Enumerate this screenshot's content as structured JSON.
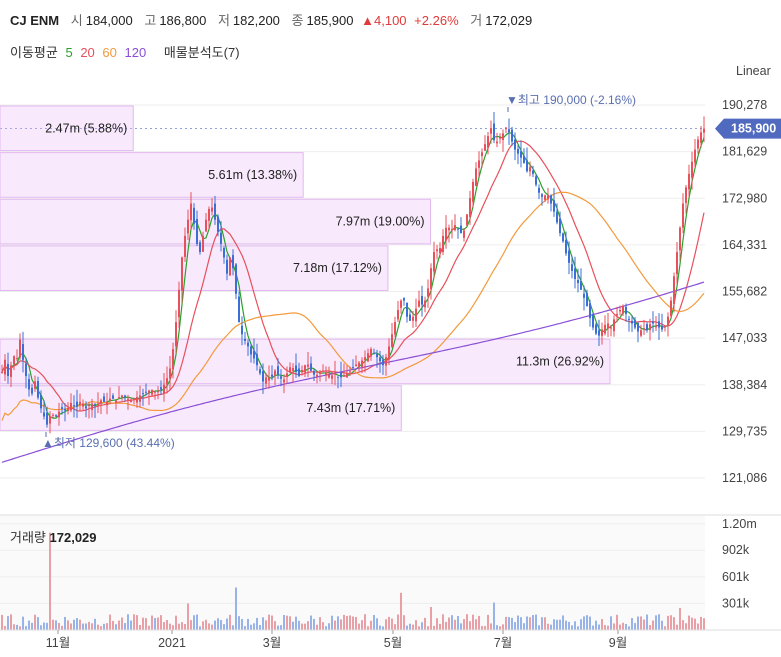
{
  "header": {
    "name": "CJ ENM",
    "open_label": "시",
    "open": "184,000",
    "high_label": "고",
    "high": "186,800",
    "low_label": "저",
    "low": "182,200",
    "close_label": "종",
    "close": "185,900",
    "change_arrow": "▲",
    "change": "4,100",
    "change_pct": "+2.26%",
    "volume_label": "거",
    "volume": "172,029"
  },
  "ma_legend": {
    "title": "이동평균",
    "items": [
      {
        "label": "5",
        "color": "#2ca02c"
      },
      {
        "label": "20",
        "color": "#e8505b"
      },
      {
        "label": "60",
        "color": "#f39a3c"
      },
      {
        "label": "120",
        "color": "#8a4fd6"
      }
    ],
    "profile_label": "매물분석도(7)"
  },
  "scale_label": "Linear",
  "current_price_tag": "185,900",
  "volume_title": "거래량",
  "volume_value": "172,029",
  "chart_data": {
    "type": "candlestick",
    "y_ticks": [
      "190,278",
      "181,629",
      "172,980",
      "164,331",
      "155,682",
      "147,033",
      "138,384",
      "129,735",
      "121,086"
    ],
    "y_tick_values": [
      190278,
      181629,
      172980,
      164331,
      155682,
      147033,
      138384,
      129735,
      121086
    ],
    "x_ticks": [
      "11월",
      "2021",
      "3월",
      "5월",
      "7월",
      "9월"
    ],
    "volume_ticks": [
      "1.20m",
      "902k",
      "601k",
      "301k"
    ],
    "volume_tick_values": [
      1200000,
      902000,
      601000,
      301000
    ],
    "high_annotation": "▼최고 190,000 (-2.16%)",
    "high_value": 190000,
    "low_annotation": "▲최저 129,600 (43.44%)",
    "low_value": 129600,
    "close_value": 185900,
    "price_profile": [
      {
        "label": "2.47m (5.88%)",
        "low": 181629,
        "high": 190278,
        "fraction": 0.0588
      },
      {
        "label": "5.61m (13.38%)",
        "low": 172980,
        "high": 181629,
        "fraction": 0.1338
      },
      {
        "label": "7.97m (19.00%)",
        "low": 164331,
        "high": 172980,
        "fraction": 0.19
      },
      {
        "label": "7.18m (17.12%)",
        "low": 155682,
        "high": 164331,
        "fraction": 0.1712
      },
      {
        "label": "11.3m (26.92%)",
        "low": 138384,
        "high": 147033,
        "fraction": 0.2692
      },
      {
        "label": "7.43m (17.71%)",
        "low": 129735,
        "high": 138384,
        "fraction": 0.1771
      }
    ],
    "close_path_points": [
      [
        0,
        140000
      ],
      [
        4,
        143000
      ],
      [
        8,
        139000
      ],
      [
        12,
        145000
      ],
      [
        15,
        141000
      ],
      [
        18,
        148000
      ],
      [
        22,
        143000
      ],
      [
        26,
        139000
      ],
      [
        30,
        136000
      ],
      [
        34,
        139000
      ],
      [
        38,
        135000
      ],
      [
        42,
        133000
      ],
      [
        46,
        131000
      ],
      [
        50,
        133000
      ],
      [
        55,
        132500
      ],
      [
        60,
        134000
      ],
      [
        65,
        133500
      ],
      [
        70,
        135000
      ],
      [
        75,
        134000
      ],
      [
        80,
        135500
      ],
      [
        85,
        134000
      ],
      [
        90,
        135000
      ],
      [
        95,
        134500
      ],
      [
        100,
        135500
      ],
      [
        105,
        135000
      ],
      [
        110,
        136000
      ],
      [
        115,
        135500
      ],
      [
        120,
        136500
      ],
      [
        125,
        136000
      ],
      [
        130,
        135500
      ],
      [
        135,
        136000
      ],
      [
        140,
        136500
      ],
      [
        145,
        137000
      ],
      [
        150,
        137500
      ],
      [
        155,
        137000
      ],
      [
        160,
        137500
      ],
      [
        165,
        139000
      ],
      [
        170,
        142000
      ],
      [
        174,
        148000
      ],
      [
        178,
        156000
      ],
      [
        182,
        164000
      ],
      [
        186,
        168000
      ],
      [
        190,
        172000
      ],
      [
        194,
        167000
      ],
      [
        198,
        162000
      ],
      [
        202,
        166000
      ],
      [
        206,
        170000
      ],
      [
        210,
        172000
      ],
      [
        214,
        169000
      ],
      [
        218,
        166000
      ],
      [
        222,
        163000
      ],
      [
        226,
        159000
      ],
      [
        230,
        163000
      ],
      [
        234,
        157000
      ],
      [
        238,
        150000
      ],
      [
        242,
        147000
      ],
      [
        246,
        146000
      ],
      [
        250,
        144000
      ],
      [
        254,
        143000
      ],
      [
        258,
        141000
      ],
      [
        262,
        139000
      ],
      [
        266,
        140000
      ],
      [
        270,
        139500
      ],
      [
        274,
        141000
      ],
      [
        278,
        140000
      ],
      [
        282,
        139000
      ],
      [
        286,
        140500
      ],
      [
        290,
        142000
      ],
      [
        294,
        141000
      ],
      [
        298,
        140000
      ],
      [
        302,
        141500
      ],
      [
        306,
        142500
      ],
      [
        310,
        141000
      ],
      [
        314,
        140000
      ],
      [
        318,
        140500
      ],
      [
        322,
        141000
      ],
      [
        326,
        140500
      ],
      [
        330,
        140000
      ],
      [
        334,
        140500
      ],
      [
        338,
        139500
      ],
      [
        342,
        140000
      ],
      [
        346,
        140500
      ],
      [
        350,
        141000
      ],
      [
        354,
        142000
      ],
      [
        358,
        142500
      ],
      [
        362,
        143000
      ],
      [
        366,
        144000
      ],
      [
        370,
        145000
      ],
      [
        374,
        144000
      ],
      [
        378,
        143000
      ],
      [
        382,
        142000
      ],
      [
        386,
        144000
      ],
      [
        390,
        147000
      ],
      [
        394,
        150000
      ],
      [
        398,
        153000
      ],
      [
        402,
        155000
      ],
      [
        406,
        151000
      ],
      [
        410,
        150000
      ],
      [
        414,
        152000
      ],
      [
        418,
        154000
      ],
      [
        422,
        153000
      ],
      [
        426,
        155000
      ],
      [
        430,
        160000
      ],
      [
        434,
        164000
      ],
      [
        438,
        163000
      ],
      [
        442,
        166000
      ],
      [
        446,
        168000
      ],
      [
        450,
        167000
      ],
      [
        454,
        168000
      ],
      [
        458,
        167000
      ],
      [
        462,
        166000
      ],
      [
        466,
        170000
      ],
      [
        470,
        174000
      ],
      [
        474,
        178000
      ],
      [
        478,
        180000
      ],
      [
        482,
        182000
      ],
      [
        486,
        184000
      ],
      [
        490,
        186000
      ],
      [
        494,
        183000
      ],
      [
        498,
        184000
      ],
      [
        502,
        185000
      ],
      [
        506,
        186500
      ],
      [
        510,
        184000
      ],
      [
        514,
        182000
      ],
      [
        518,
        181000
      ],
      [
        522,
        180000
      ],
      [
        526,
        178000
      ],
      [
        530,
        179000
      ],
      [
        534,
        176000
      ],
      [
        538,
        174000
      ],
      [
        542,
        173000
      ],
      [
        546,
        174000
      ],
      [
        550,
        172000
      ],
      [
        554,
        170000
      ],
      [
        558,
        167000
      ],
      [
        562,
        165000
      ],
      [
        566,
        162000
      ],
      [
        570,
        160000
      ],
      [
        574,
        158000
      ],
      [
        578,
        157000
      ],
      [
        582,
        155000
      ],
      [
        586,
        153000
      ],
      [
        590,
        150000
      ],
      [
        594,
        148000
      ],
      [
        598,
        147500
      ],
      [
        602,
        149000
      ],
      [
        606,
        150000
      ],
      [
        610,
        149000
      ],
      [
        614,
        151000
      ],
      [
        618,
        152000
      ],
      [
        622,
        153000
      ],
      [
        626,
        151000
      ],
      [
        630,
        150000
      ],
      [
        634,
        149000
      ],
      [
        638,
        148000
      ],
      [
        642,
        149000
      ],
      [
        646,
        148500
      ],
      [
        650,
        150000
      ],
      [
        654,
        149500
      ],
      [
        658,
        149000
      ],
      [
        662,
        148500
      ],
      [
        666,
        150000
      ],
      [
        670,
        154000
      ],
      [
        674,
        160000
      ],
      [
        678,
        166000
      ],
      [
        682,
        172000
      ],
      [
        686,
        176000
      ],
      [
        690,
        179000
      ],
      [
        694,
        182000
      ],
      [
        698,
        184500
      ],
      [
        702,
        185900
      ]
    ]
  }
}
